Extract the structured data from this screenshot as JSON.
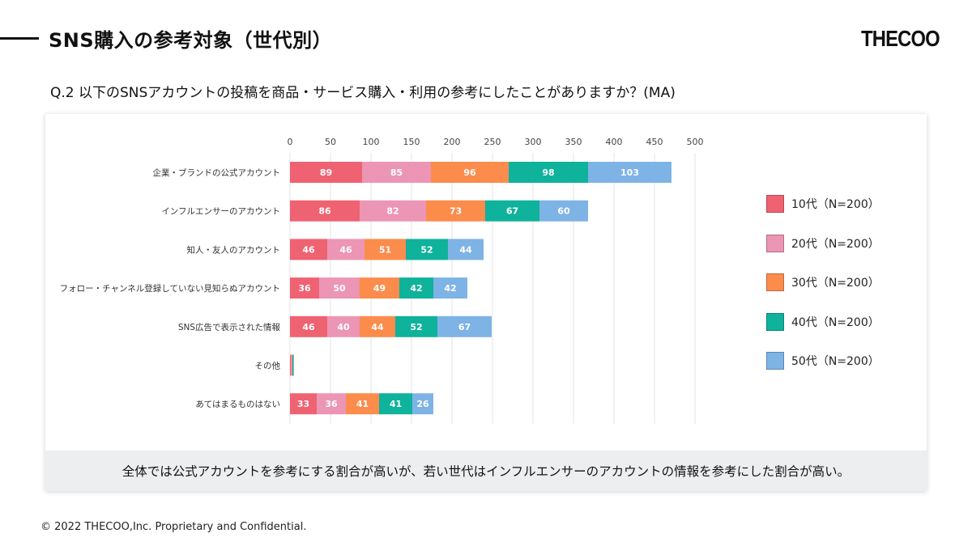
{
  "page": {
    "title": "SNS購入の参考対象（世代別）",
    "logo": "THECOO",
    "question": "Q.2 以下のSNSアカウントの投稿を商品・サービス購入・利用の参考にしたことがありますか？(MA)",
    "summary": "全体では公式アカウントを参考にする割合が高いが、若い世代はインフルエンサーのアカウントの情報を参考にした割合が高い。",
    "footer": "© 2022 THECOO,Inc. Proprietary and Confidential."
  },
  "chart_data": {
    "type": "bar",
    "orientation": "horizontal",
    "stacked": true,
    "title": "",
    "xlabel": "",
    "ylabel": "",
    "xlim": [
      0,
      500
    ],
    "x_ticks": [
      0,
      50,
      100,
      150,
      200,
      250,
      300,
      350,
      400,
      450,
      500
    ],
    "grid": true,
    "legend_position": "right",
    "categories": [
      "企業・ブランドの公式アカウント",
      "インフルエンサーのアカウント",
      "知人・友人のアカウント",
      "フォロー・チャンネル登録していない見知らぬアカウント",
      "SNS広告で表示された情報",
      "その他",
      "あてはまるものはない"
    ],
    "series": [
      {
        "name": "10代（N=200）",
        "color": "#ef6272",
        "values": [
          89,
          86,
          46,
          36,
          46,
          1,
          33
        ]
      },
      {
        "name": "20代（N=200）",
        "color": "#ec95b4",
        "values": [
          85,
          82,
          46,
          50,
          40,
          1,
          36
        ]
      },
      {
        "name": "30代（N=200）",
        "color": "#fb8c4c",
        "values": [
          96,
          73,
          51,
          49,
          44,
          1,
          41
        ]
      },
      {
        "name": "40代（N=200）",
        "color": "#0fb29b",
        "values": [
          98,
          67,
          52,
          42,
          52,
          1,
          41
        ]
      },
      {
        "name": "50代（N=200）",
        "color": "#7eb3e6",
        "values": [
          103,
          60,
          44,
          42,
          67,
          1,
          26
        ]
      }
    ],
    "hide_labels_below": 5
  }
}
